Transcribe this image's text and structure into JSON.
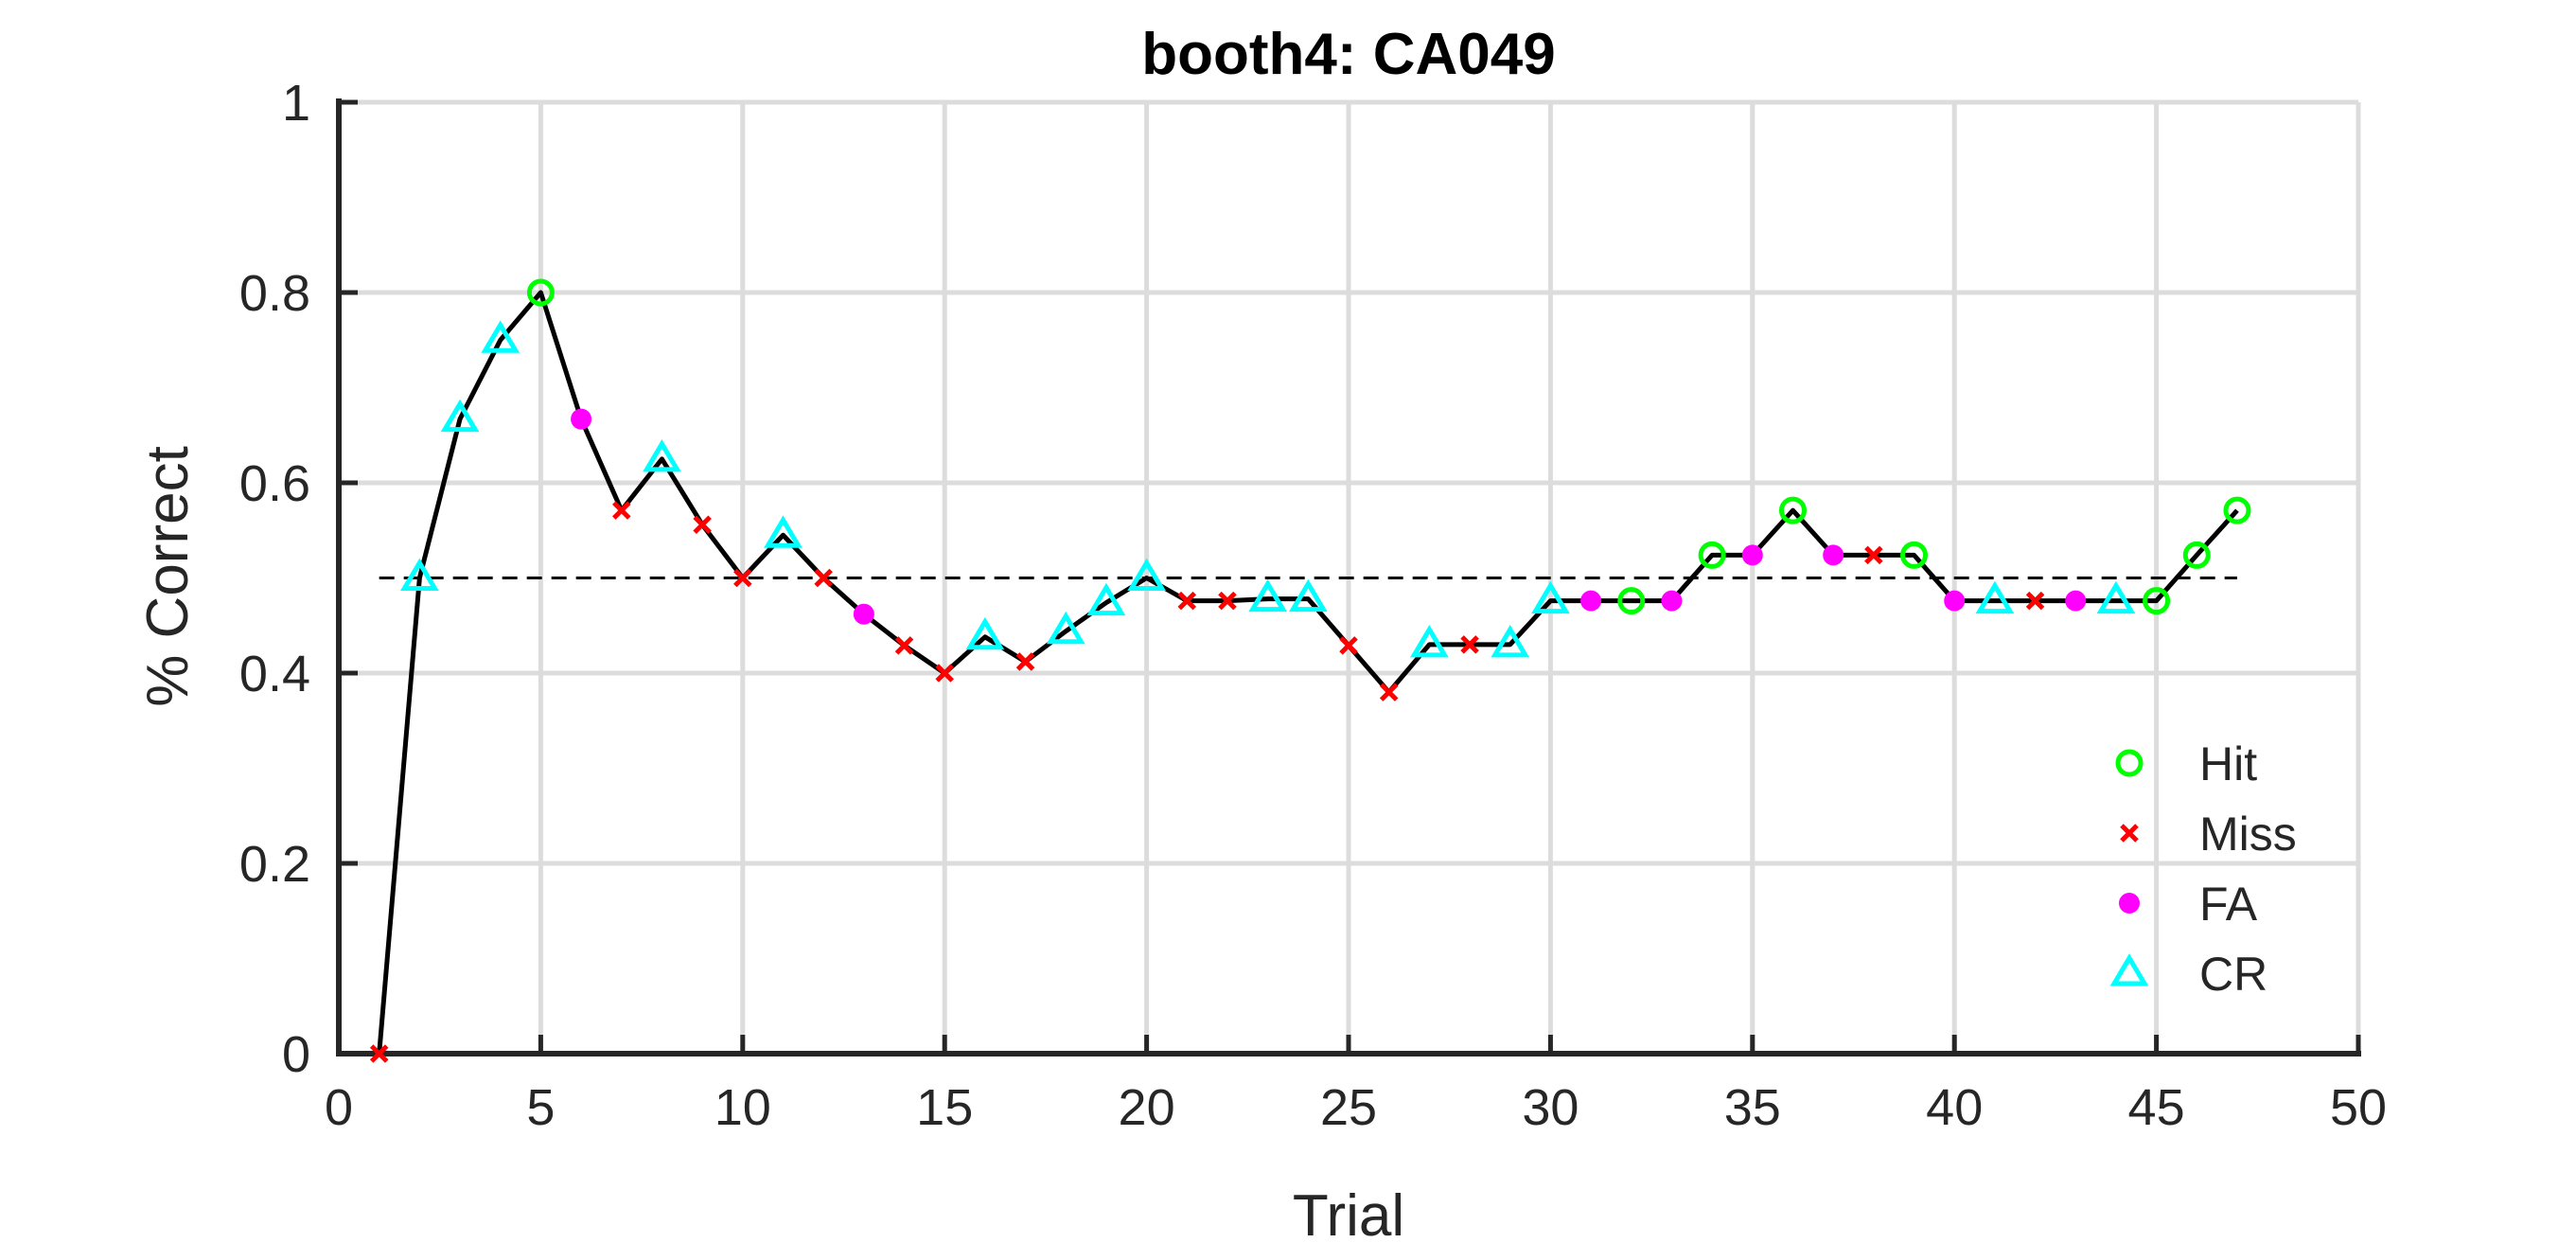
{
  "chart_data": {
    "type": "line",
    "title": "booth4: CA049",
    "xlabel": "Trial",
    "ylabel": "% Correct",
    "xlim": [
      0,
      50
    ],
    "ylim": [
      0,
      1
    ],
    "x_ticks": [
      "0",
      "5",
      "10",
      "15",
      "20",
      "25",
      "30",
      "35",
      "40",
      "45",
      "50"
    ],
    "y_ticks": [
      "0",
      "0.2",
      "0.4",
      "0.6",
      "0.8",
      "1"
    ],
    "grid": true,
    "legend_position": "bottom-right",
    "reference_line": {
      "y": 0.5,
      "style": "dashed",
      "x_range": [
        1,
        47
      ]
    },
    "x": [
      1,
      2,
      3,
      4,
      5,
      6,
      7,
      8,
      9,
      10,
      11,
      12,
      13,
      14,
      15,
      16,
      17,
      18,
      19,
      20,
      21,
      22,
      23,
      24,
      25,
      26,
      27,
      28,
      29,
      30,
      31,
      32,
      33,
      34,
      35,
      36,
      37,
      38,
      39,
      40,
      41,
      42,
      43,
      44,
      45,
      46,
      47
    ],
    "y": [
      0,
      0.5,
      0.667,
      0.75,
      0.8,
      0.667,
      0.571,
      0.625,
      0.556,
      0.5,
      0.545,
      0.5,
      0.462,
      0.429,
      0.4,
      0.438,
      0.412,
      0.444,
      0.474,
      0.5,
      0.476,
      0.476,
      0.478,
      0.478,
      0.429,
      0.38,
      0.43,
      0.43,
      0.43,
      0.476,
      0.476,
      0.476,
      0.476,
      0.524,
      0.524,
      0.571,
      0.524,
      0.524,
      0.524,
      0.476,
      0.476,
      0.476,
      0.476,
      0.476,
      0.476,
      0.524,
      0.571
    ],
    "outcomes": [
      "Miss",
      "CR",
      "CR",
      "CR",
      "Hit",
      "FA",
      "Miss",
      "CR",
      "Miss",
      "Miss",
      "CR",
      "Miss",
      "FA",
      "Miss",
      "Miss",
      "CR",
      "Miss",
      "CR",
      "CR",
      "CR",
      "Miss",
      "Miss",
      "CR",
      "CR",
      "Miss",
      "Miss",
      "CR",
      "Miss",
      "CR",
      "CR",
      "FA",
      "Hit",
      "FA",
      "Hit",
      "FA",
      "Hit",
      "FA",
      "Miss",
      "Hit",
      "FA",
      "CR",
      "Miss",
      "FA",
      "CR",
      "Hit",
      "Hit",
      "Hit"
    ],
    "series": [
      {
        "name": "Hit",
        "marker": "circle",
        "color": "#00ff00"
      },
      {
        "name": "Miss",
        "marker": "x",
        "color": "#ff0000"
      },
      {
        "name": "FA",
        "marker": "dot",
        "color": "#ff00ff"
      },
      {
        "name": "CR",
        "marker": "triangle",
        "color": "#00ffff"
      }
    ]
  }
}
